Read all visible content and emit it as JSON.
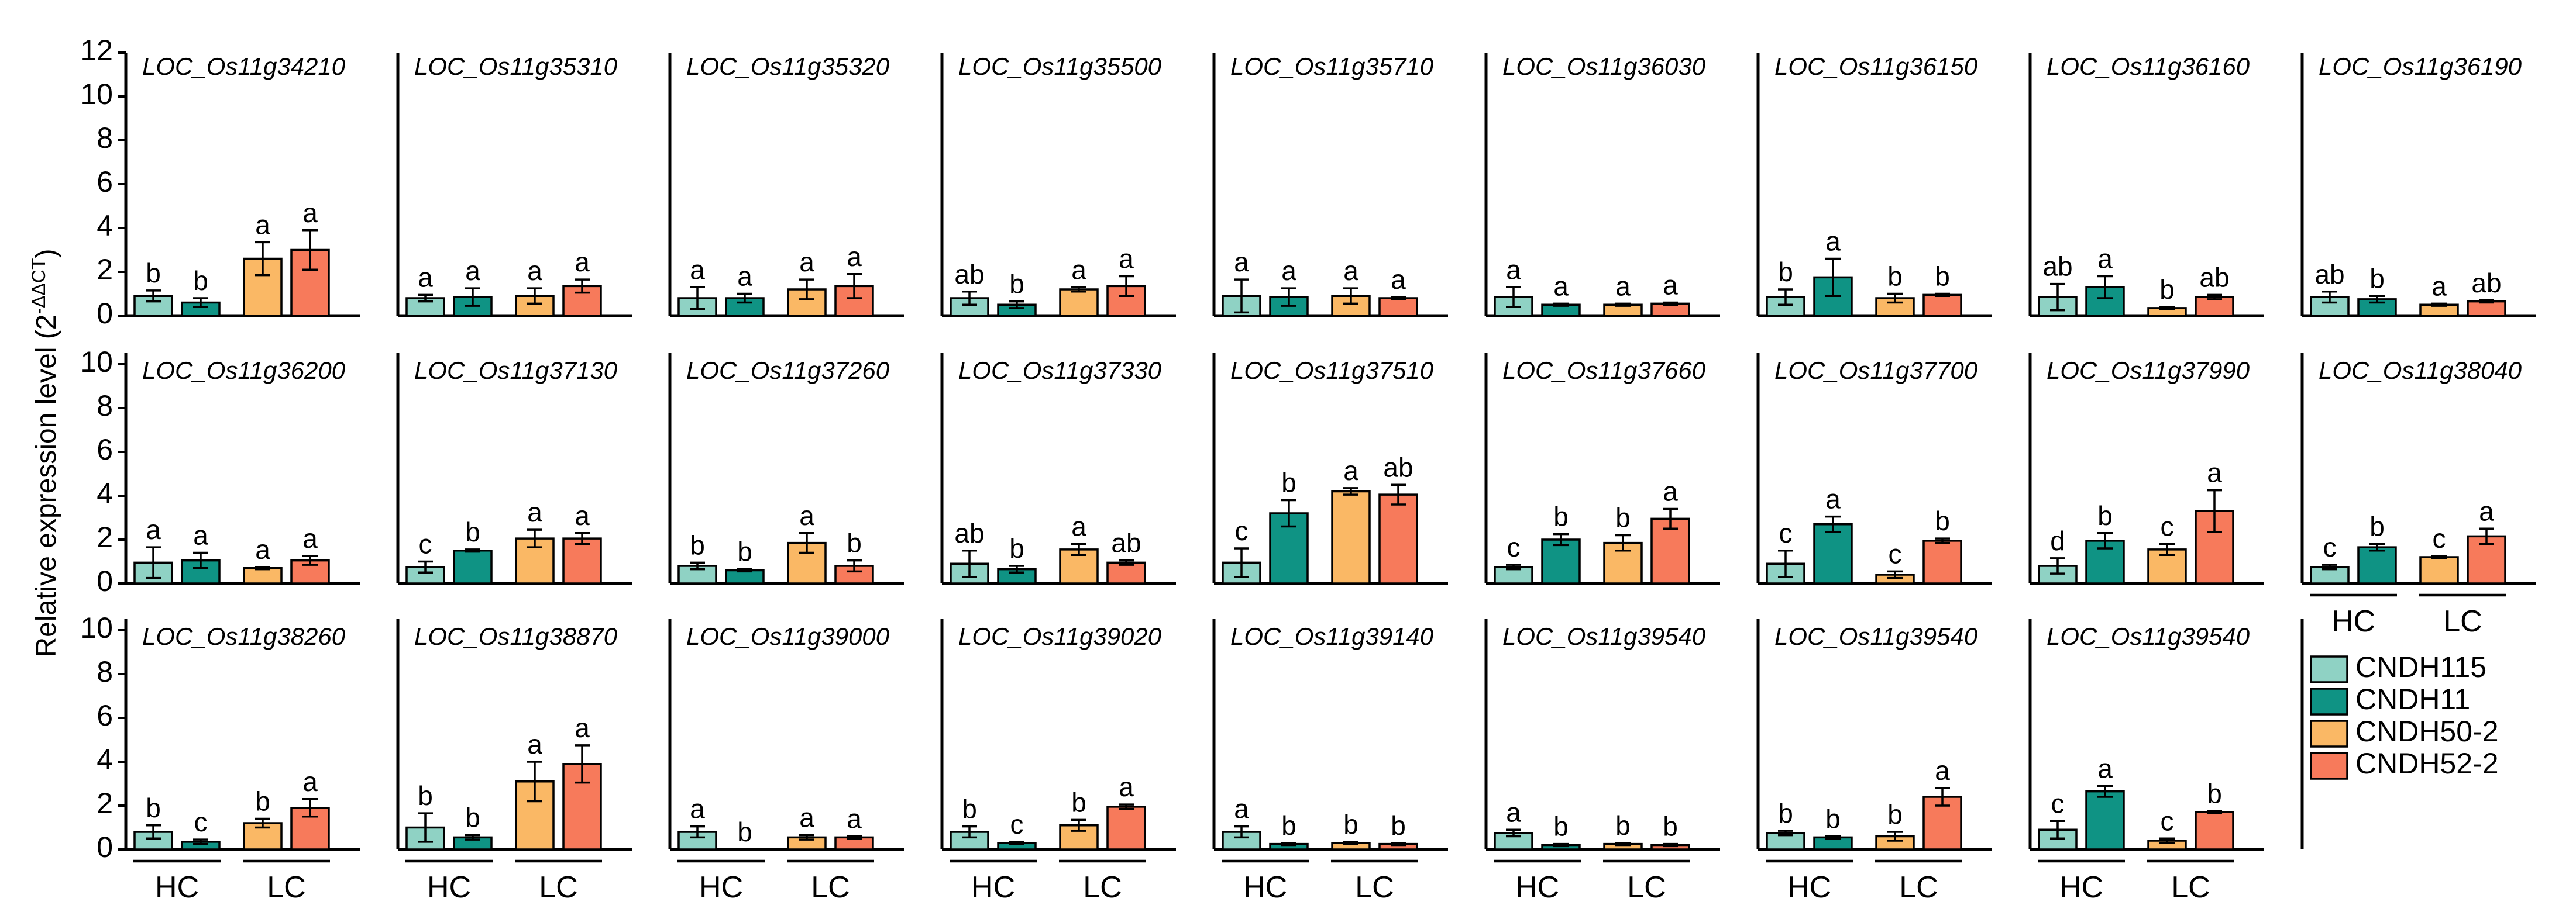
{
  "chart_data": {
    "type": "bar",
    "ylabel": "Relative expression level (2",
    "ylabel_superscript": "-ΔΔCT",
    "ylim": [
      0,
      12
    ],
    "yticks_top": [
      "0",
      "2",
      "4",
      "6",
      "8",
      "10",
      "12"
    ],
    "yticks_lower": [
      "0",
      "2",
      "4",
      "6",
      "8",
      "10"
    ],
    "groups": [
      "HC",
      "LC"
    ],
    "series_names": [
      "CNDH115",
      "CNDH11",
      "CNDH50-2",
      "CNDH52-2"
    ],
    "colors": [
      "#8fd2c4",
      "#0f9384",
      "#fab865",
      "#f77a5b"
    ],
    "panels": [
      {
        "gene": "LOC_Os11g34210",
        "values": [
          0.9,
          0.6,
          2.6,
          3.0
        ],
        "errors": [
          0.25,
          0.2,
          0.75,
          0.9
        ],
        "letters": [
          "b",
          "b",
          "a",
          "a"
        ]
      },
      {
        "gene": "LOC_Os11g35310",
        "values": [
          0.8,
          0.85,
          0.9,
          1.35
        ],
        "errors": [
          0.15,
          0.4,
          0.35,
          0.3
        ],
        "letters": [
          "a",
          "a",
          "a",
          "a"
        ]
      },
      {
        "gene": "LOC_Os11g35320",
        "values": [
          0.8,
          0.8,
          1.2,
          1.35
        ],
        "errors": [
          0.5,
          0.2,
          0.45,
          0.55
        ],
        "letters": [
          "a",
          "a",
          "a",
          "a"
        ]
      },
      {
        "gene": "LOC_Os11g35500",
        "values": [
          0.8,
          0.5,
          1.2,
          1.35
        ],
        "errors": [
          0.3,
          0.15,
          0.1,
          0.45
        ],
        "letters": [
          "ab",
          "b",
          "a",
          "a"
        ]
      },
      {
        "gene": "LOC_Os11g35710",
        "values": [
          0.9,
          0.85,
          0.9,
          0.8
        ],
        "errors": [
          0.75,
          0.4,
          0.35,
          0.05
        ],
        "letters": [
          "a",
          "a",
          "a",
          "a"
        ]
      },
      {
        "gene": "LOC_Os11g36030",
        "values": [
          0.85,
          0.5,
          0.5,
          0.55
        ],
        "errors": [
          0.45,
          0.05,
          0.05,
          0.05
        ],
        "letters": [
          "a",
          "a",
          "a",
          "a"
        ]
      },
      {
        "gene": "LOC_Os11g36150",
        "values": [
          0.85,
          1.75,
          0.8,
          0.95
        ],
        "errors": [
          0.35,
          0.85,
          0.2,
          0.05
        ],
        "letters": [
          "b",
          "a",
          "b",
          "b"
        ]
      },
      {
        "gene": "LOC_Os11g36160",
        "values": [
          0.85,
          1.3,
          0.35,
          0.85
        ],
        "errors": [
          0.6,
          0.5,
          0.05,
          0.1
        ],
        "letters": [
          "ab",
          "a",
          "b",
          "ab"
        ]
      },
      {
        "gene": "LOC_Os11g36190",
        "values": [
          0.85,
          0.75,
          0.5,
          0.65
        ],
        "errors": [
          0.25,
          0.15,
          0.05,
          0.05
        ],
        "letters": [
          "ab",
          "b",
          "a",
          "ab"
        ]
      },
      {
        "gene": "LOC_Os11g36200",
        "values": [
          0.95,
          1.05,
          0.7,
          1.05
        ],
        "errors": [
          0.7,
          0.35,
          0.05,
          0.2
        ],
        "letters": [
          "a",
          "a",
          "a",
          "a"
        ]
      },
      {
        "gene": "LOC_Os11g37130",
        "values": [
          0.75,
          1.5,
          2.05,
          2.05
        ],
        "errors": [
          0.25,
          0.05,
          0.4,
          0.25
        ],
        "letters": [
          "c",
          "b",
          "a",
          "a"
        ]
      },
      {
        "gene": "LOC_Os11g37260",
        "values": [
          0.8,
          0.6,
          1.85,
          0.8
        ],
        "errors": [
          0.15,
          0.05,
          0.45,
          0.25
        ],
        "letters": [
          "b",
          "b",
          "a",
          "b"
        ]
      },
      {
        "gene": "LOC_Os11g37330",
        "values": [
          0.9,
          0.65,
          1.55,
          0.95
        ],
        "errors": [
          0.6,
          0.15,
          0.25,
          0.1
        ],
        "letters": [
          "ab",
          "b",
          "a",
          "ab"
        ]
      },
      {
        "gene": "LOC_Os11g37510",
        "values": [
          0.95,
          3.2,
          4.2,
          4.05
        ],
        "errors": [
          0.65,
          0.6,
          0.15,
          0.45
        ],
        "letters": [
          "c",
          "b",
          "a",
          "ab"
        ]
      },
      {
        "gene": "LOC_Os11g37660",
        "values": [
          0.75,
          2.0,
          1.85,
          2.95
        ],
        "errors": [
          0.1,
          0.25,
          0.35,
          0.45
        ],
        "letters": [
          "c",
          "b",
          "b",
          "a"
        ]
      },
      {
        "gene": "LOC_Os11g37700",
        "values": [
          0.9,
          2.7,
          0.4,
          1.95
        ],
        "errors": [
          0.6,
          0.35,
          0.15,
          0.1
        ],
        "letters": [
          "c",
          "a",
          "c",
          "b"
        ]
      },
      {
        "gene": "LOC_Os11g37990",
        "values": [
          0.8,
          1.95,
          1.55,
          3.3
        ],
        "errors": [
          0.35,
          0.35,
          0.25,
          0.95
        ],
        "letters": [
          "d",
          "b",
          "c",
          "a"
        ]
      },
      {
        "gene": "LOC_Os11g38040",
        "values": [
          0.75,
          1.65,
          1.2,
          2.15
        ],
        "errors": [
          0.1,
          0.15,
          0.05,
          0.35
        ],
        "letters": [
          "c",
          "b",
          "c",
          "a"
        ]
      },
      {
        "gene": "LOC_Os11g38260",
        "values": [
          0.8,
          0.35,
          1.2,
          1.9
        ],
        "errors": [
          0.3,
          0.1,
          0.2,
          0.4
        ],
        "letters": [
          "b",
          "c",
          "b",
          "a"
        ]
      },
      {
        "gene": "LOC_Os11g38870",
        "values": [
          1.0,
          0.55,
          3.1,
          3.9
        ],
        "errors": [
          0.65,
          0.1,
          0.9,
          0.85
        ],
        "letters": [
          "b",
          "b",
          "a",
          "a"
        ]
      },
      {
        "gene": "LOC_Os11g39000",
        "values": [
          0.8,
          0.0,
          0.55,
          0.55
        ],
        "errors": [
          0.25,
          0.0,
          0.1,
          0.05
        ],
        "letters": [
          "a",
          "b",
          "a",
          "a"
        ]
      },
      {
        "gene": "LOC_Os11g39020",
        "values": [
          0.8,
          0.3,
          1.1,
          1.95
        ],
        "errors": [
          0.25,
          0.05,
          0.25,
          0.1
        ],
        "letters": [
          "b",
          "c",
          "b",
          "a"
        ]
      },
      {
        "gene": "LOC_Os11g39140",
        "values": [
          0.8,
          0.25,
          0.3,
          0.25
        ],
        "errors": [
          0.25,
          0.05,
          0.05,
          0.05
        ],
        "letters": [
          "a",
          "b",
          "b",
          "b"
        ]
      },
      {
        "gene": "LOC_Os11g39540",
        "values": [
          0.75,
          0.2,
          0.25,
          0.2
        ],
        "errors": [
          0.15,
          0.05,
          0.05,
          0.05
        ],
        "letters": [
          "a",
          "b",
          "b",
          "b"
        ]
      },
      {
        "gene": "LOC_Os11g39540",
        "values": [
          0.75,
          0.55,
          0.6,
          2.4
        ],
        "errors": [
          0.1,
          0.05,
          0.2,
          0.4
        ],
        "letters": [
          "b",
          "b",
          "b",
          "a"
        ]
      },
      {
        "gene": "LOC_Os11g39540",
        "values": [
          0.9,
          2.65,
          0.4,
          1.7
        ],
        "errors": [
          0.4,
          0.25,
          0.1,
          0.05
        ],
        "letters": [
          "c",
          "a",
          "c",
          "b"
        ]
      }
    ]
  }
}
